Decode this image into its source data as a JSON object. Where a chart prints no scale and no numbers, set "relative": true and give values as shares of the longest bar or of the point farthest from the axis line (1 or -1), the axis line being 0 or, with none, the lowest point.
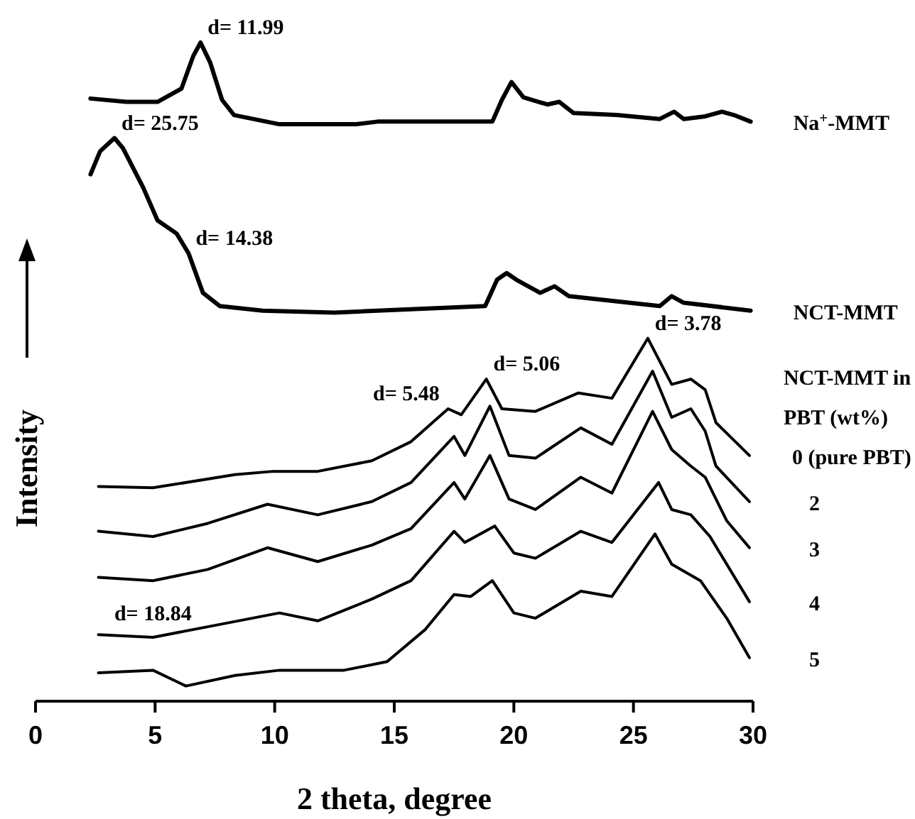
{
  "chart_data": {
    "type": "line",
    "relative": true,
    "xlabel": "2 theta, degree",
    "ylabel": "Intensity",
    "legend_title": "NCT-MMT in PBT (wt%)",
    "xlim": [
      0,
      30
    ],
    "xticks": [
      0,
      5,
      10,
      15,
      20,
      25,
      30
    ],
    "series": [
      {
        "name": "Na$^{+}$-MMT",
        "color": "#000000",
        "x": [
          2.3,
          3.8,
          5.1,
          6.1,
          6.6,
          6.9,
          7.3,
          7.8,
          8.3,
          10.2,
          13.4,
          14.3,
          19.1,
          19.5,
          19.9,
          20.4,
          21.4,
          21.9,
          22.5,
          24.3,
          26.1,
          26.7,
          27.1,
          28.0,
          28.7,
          29.2,
          29.9
        ],
        "values": [
          0.915,
          0.91,
          0.91,
          0.93,
          0.98,
          1.0,
          0.97,
          0.913,
          0.89,
          0.876,
          0.876,
          0.88,
          0.88,
          0.913,
          0.94,
          0.917,
          0.906,
          0.91,
          0.893,
          0.89,
          0.884,
          0.895,
          0.884,
          0.888,
          0.895,
          0.89,
          0.88
        ]
      },
      {
        "name": "NCT-MMT",
        "color": "#000000",
        "x": [
          2.3,
          2.7,
          3.3,
          3.65,
          4.5,
          5.1,
          5.9,
          6.4,
          7.0,
          7.7,
          9.5,
          12.5,
          18.8,
          19.3,
          19.7,
          20.1,
          21.1,
          21.7,
          22.3,
          26.1,
          26.6,
          27.1,
          29.9
        ],
        "values": [
          0.8,
          0.835,
          0.855,
          0.84,
          0.78,
          0.73,
          0.71,
          0.68,
          0.62,
          0.6,
          0.593,
          0.59,
          0.6,
          0.64,
          0.65,
          0.64,
          0.62,
          0.63,
          0.615,
          0.6,
          0.615,
          0.605,
          0.593
        ]
      },
      {
        "name": "0 (pure PBT)",
        "color": "#000000",
        "x": [
          2.63,
          4.91,
          8.34,
          9.94,
          11.8,
          14.06,
          15.7,
          17.25,
          17.8,
          18.85,
          19.5,
          20.9,
          22.7,
          24.1,
          25.6,
          26.6,
          27.4,
          28.0,
          28.45,
          29.85
        ],
        "values": [
          0.326,
          0.324,
          0.344,
          0.349,
          0.349,
          0.365,
          0.394,
          0.444,
          0.435,
          0.489,
          0.444,
          0.44,
          0.468,
          0.46,
          0.551,
          0.481,
          0.489,
          0.473,
          0.423,
          0.373
        ]
      },
      {
        "name": "2",
        "color": "#000000",
        "x": [
          2.63,
          4.91,
          7.2,
          9.7,
          11.8,
          14.06,
          15.7,
          17.5,
          17.95,
          19.0,
          19.8,
          20.9,
          22.8,
          24.1,
          25.8,
          26.6,
          27.4,
          28.0,
          28.45,
          29.85
        ],
        "values": [
          0.258,
          0.25,
          0.27,
          0.299,
          0.283,
          0.303,
          0.332,
          0.402,
          0.373,
          0.448,
          0.373,
          0.369,
          0.415,
          0.39,
          0.501,
          0.431,
          0.444,
          0.41,
          0.357,
          0.303
        ]
      },
      {
        "name": "3",
        "color": "#000000",
        "x": [
          2.63,
          4.91,
          7.2,
          9.7,
          11.8,
          14.06,
          15.7,
          17.5,
          17.95,
          19.0,
          19.8,
          20.9,
          22.8,
          24.1,
          25.8,
          26.6,
          27.4,
          28.0,
          28.9,
          29.85
        ],
        "values": [
          0.188,
          0.183,
          0.2,
          0.233,
          0.212,
          0.237,
          0.262,
          0.332,
          0.307,
          0.373,
          0.307,
          0.291,
          0.34,
          0.316,
          0.44,
          0.382,
          0.357,
          0.34,
          0.274,
          0.233
        ]
      },
      {
        "name": "4",
        "color": "#000000",
        "x": [
          2.63,
          4.91,
          7.2,
          10.2,
          11.8,
          14.06,
          15.7,
          17.5,
          17.95,
          19.2,
          20.0,
          20.9,
          22.8,
          24.1,
          26.05,
          26.6,
          27.4,
          28.2,
          29.85
        ],
        "values": [
          0.101,
          0.097,
          0.113,
          0.134,
          0.122,
          0.155,
          0.183,
          0.258,
          0.241,
          0.266,
          0.225,
          0.217,
          0.258,
          0.241,
          0.332,
          0.291,
          0.283,
          0.25,
          0.151
        ]
      },
      {
        "name": "5",
        "color": "#000000",
        "x": [
          2.63,
          4.91,
          6.29,
          8.34,
          10.2,
          12.9,
          14.7,
          16.3,
          17.5,
          18.2,
          19.1,
          20.0,
          20.9,
          22.8,
          24.1,
          25.9,
          26.6,
          27.8,
          28.9,
          29.85
        ],
        "values": [
          0.043,
          0.047,
          0.023,
          0.039,
          0.047,
          0.047,
          0.06,
          0.109,
          0.162,
          0.159,
          0.183,
          0.134,
          0.126,
          0.167,
          0.159,
          0.254,
          0.208,
          0.183,
          0.126,
          0.066
        ]
      }
    ],
    "annotations": [
      {
        "text": "d= 11.99",
        "x": 6.9,
        "y": 1.0
      },
      {
        "text": "d= 25.75",
        "x": 3.3,
        "y": 0.855
      },
      {
        "text": "d= 14.38",
        "x": 6.4,
        "y": 0.68
      },
      {
        "text": "d= 5.48",
        "x": 17.25,
        "y": 0.444
      },
      {
        "text": "d= 5.06",
        "x": 18.85,
        "y": 0.489
      },
      {
        "text": "d= 3.78",
        "x": 25.6,
        "y": 0.551
      },
      {
        "text": "d= 18.84",
        "x": 4.91,
        "y": 0.097
      }
    ]
  }
}
